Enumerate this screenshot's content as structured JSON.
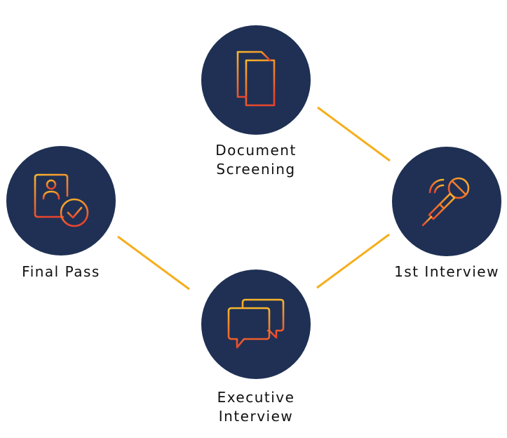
{
  "steps": [
    {
      "id": "document-screening",
      "label": "Document\nScreening",
      "icon": "documents-icon"
    },
    {
      "id": "first-interview",
      "label": "1st Interview",
      "icon": "microphone-icon"
    },
    {
      "id": "executive-interview",
      "label": "Executive\nInterview",
      "icon": "chat-bubbles-icon"
    },
    {
      "id": "final-pass",
      "label": "Final Pass",
      "icon": "id-card-check-icon"
    }
  ],
  "colors": {
    "circle": "#1f3054",
    "connector": "#f5ae1c",
    "icon_gradient_start": "#f8b62c",
    "icon_gradient_end": "#e8452c"
  }
}
